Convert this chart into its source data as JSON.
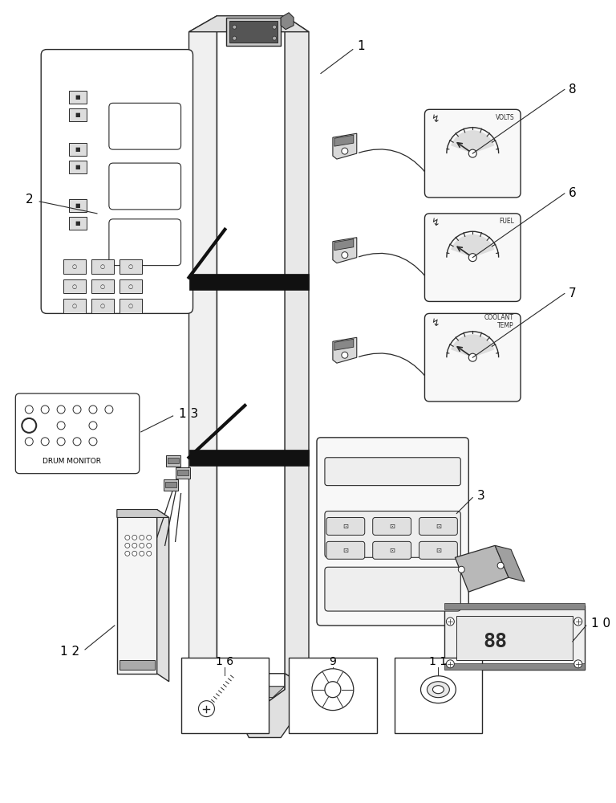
{
  "background_color": "#ffffff",
  "line_color": "#2a2a2a",
  "fig_width": 7.68,
  "fig_height": 10.0,
  "labels": {
    "1": "1",
    "2": "2",
    "3": "3",
    "6": "6",
    "7": "7",
    "8": "8",
    "9": "9",
    "10": "1 0",
    "11": "1 1",
    "12": "1 2",
    "13": "1 3",
    "16": "1 6"
  },
  "gauge_texts": [
    "VOLTS",
    "FUEL",
    "COOLANT\nTEMP"
  ]
}
